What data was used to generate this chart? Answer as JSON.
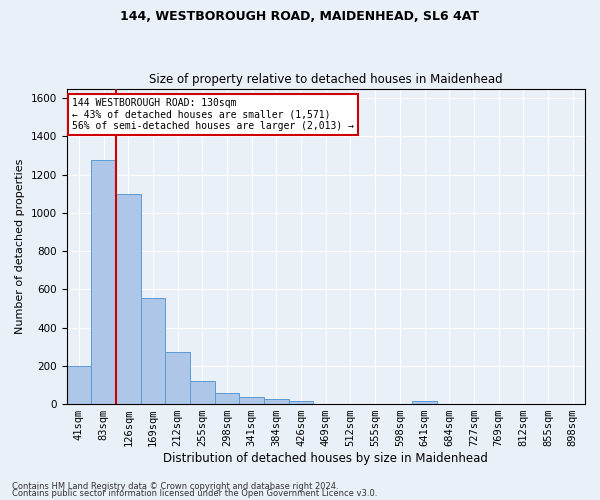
{
  "title1": "144, WESTBOROUGH ROAD, MAIDENHEAD, SL6 4AT",
  "title2": "Size of property relative to detached houses in Maidenhead",
  "xlabel": "Distribution of detached houses by size in Maidenhead",
  "ylabel": "Number of detached properties",
  "footer1": "Contains HM Land Registry data © Crown copyright and database right 2024.",
  "footer2": "Contains public sector information licensed under the Open Government Licence v3.0.",
  "bar_labels": [
    "41sqm",
    "83sqm",
    "126sqm",
    "169sqm",
    "212sqm",
    "255sqm",
    "298sqm",
    "341sqm",
    "384sqm",
    "426sqm",
    "469sqm",
    "512sqm",
    "555sqm",
    "598sqm",
    "641sqm",
    "684sqm",
    "727sqm",
    "769sqm",
    "812sqm",
    "855sqm",
    "898sqm"
  ],
  "bar_values": [
    200,
    1275,
    1100,
    555,
    270,
    120,
    60,
    35,
    25,
    15,
    0,
    0,
    0,
    0,
    15,
    0,
    0,
    0,
    0,
    0,
    0
  ],
  "bar_color": "#aec6e8",
  "bar_edge_color": "#5b9bd5",
  "vline_color": "#cc0000",
  "ylim": [
    0,
    1650
  ],
  "yticks": [
    0,
    200,
    400,
    600,
    800,
    1000,
    1200,
    1400,
    1600
  ],
  "annotation_text": "144 WESTBOROUGH ROAD: 130sqm\n← 43% of detached houses are smaller (1,571)\n56% of semi-detached houses are larger (2,013) →",
  "bg_color": "#eaf0f8",
  "plot_bg_color": "#eaf0f8",
  "grid_color": "#ffffff",
  "annotation_box_color": "#cc0000",
  "vline_position": 2.5
}
